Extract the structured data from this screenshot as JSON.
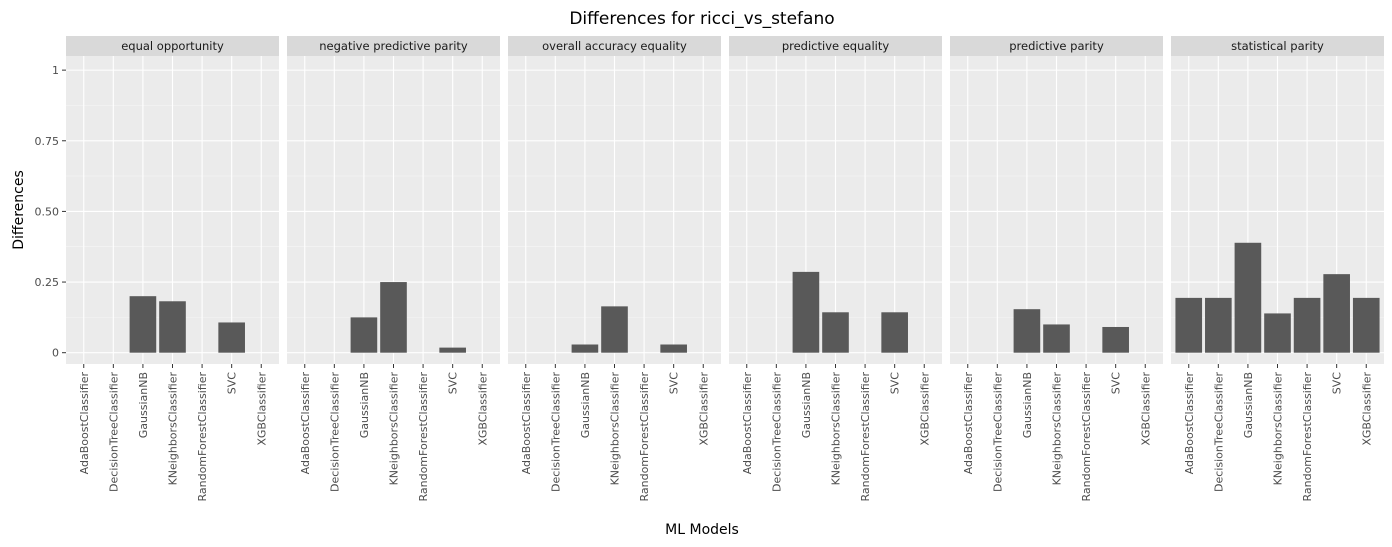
{
  "chart_data": {
    "type": "bar",
    "title": "Differences for ricci_vs_stefano",
    "xlabel": "ML Models",
    "ylabel": "Differences",
    "ylim": [
      -0.04,
      1.05
    ],
    "yticks": [
      0,
      0.25,
      0.5,
      0.75,
      1
    ],
    "ytick_labels": [
      "0",
      "0.25",
      "0.50",
      "0.75",
      "1"
    ],
    "grid": true,
    "bar_color": "#595959",
    "panel_bg": "#ebebeb",
    "strip_bg": "#d9d9d9",
    "categories": [
      "AdaBoostClassifier",
      "DecisionTreeClassifier",
      "GaussianNB",
      "KNeighborsClassifier",
      "RandomForestClassifier",
      "SVC",
      "XGBClassifier"
    ],
    "facets": [
      {
        "name": "equal opportunity",
        "values": [
          0,
          0,
          0.2,
          0.182,
          0,
          0.107,
          0
        ]
      },
      {
        "name": "negative predictive parity",
        "values": [
          0,
          0,
          0.125,
          0.25,
          0,
          0.018,
          0
        ]
      },
      {
        "name": "overall accuracy equality",
        "values": [
          0,
          0,
          0.029,
          0.164,
          0,
          0.029,
          0
        ]
      },
      {
        "name": "predictive equality",
        "values": [
          0,
          0,
          0.286,
          0.143,
          0,
          0.143,
          0
        ]
      },
      {
        "name": "predictive parity",
        "values": [
          0,
          0,
          0.154,
          0.1,
          0,
          0.091,
          0
        ]
      },
      {
        "name": "statistical parity",
        "values": [
          0.194,
          0.194,
          0.389,
          0.139,
          0.194,
          0.278,
          0.194
        ]
      }
    ]
  }
}
